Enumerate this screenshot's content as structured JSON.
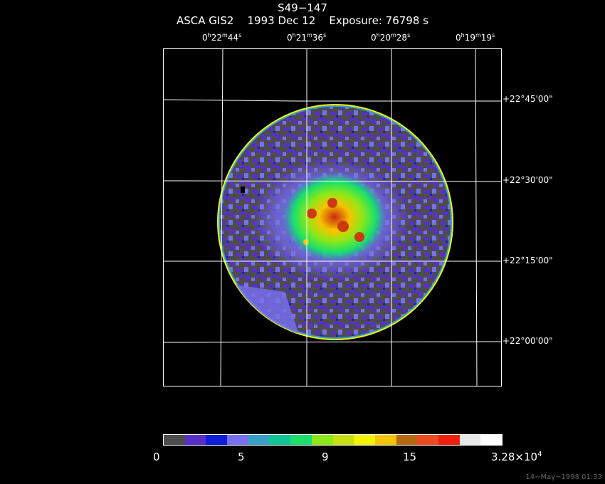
{
  "header": {
    "target": "S49−147",
    "instrument": "ASCA GIS2",
    "date": "1993 Dec 12",
    "exposure": "Exposure: 76798 s"
  },
  "ra_ticks": [
    {
      "h": "0",
      "m": "22",
      "s": "44"
    },
    {
      "h": "0",
      "m": "21",
      "s": "36"
    },
    {
      "h": "0",
      "m": "20",
      "s": "28"
    },
    {
      "h": "0",
      "m": "19",
      "s": "19"
    }
  ],
  "dec_ticks": [
    "+22°45'00\"",
    "+22°30'00\"",
    "+22°15'00\"",
    "+22°00'00\""
  ],
  "colorbar": {
    "colors": [
      "#4d4d4d",
      "#5a2fc9",
      "#0f1fd8",
      "#7870f0",
      "#38a0c8",
      "#10c498",
      "#19e06a",
      "#8ce818",
      "#c8e010",
      "#f4f400",
      "#f5c400",
      "#b56a10",
      "#ee4a20",
      "#f02010",
      "#e8e8e8",
      "#ffffff"
    ],
    "labels": {
      "l0": "0",
      "l5": "5",
      "l9": "9",
      "l15": "15",
      "lmax_mantissa": "3.28×10",
      "lmax_exp": "4"
    }
  },
  "timestamp": "14−May−1998 01:33"
}
